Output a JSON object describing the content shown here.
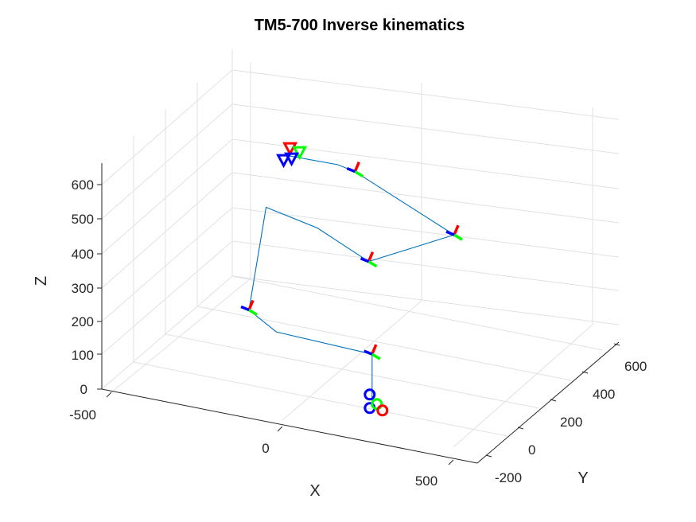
{
  "chart_data": {
    "type": "line3d",
    "title": "TM5-700 Inverse kinematics",
    "xlabel": "X",
    "ylabel": "Y",
    "zlabel": "Z",
    "x_ticks": [
      "-500",
      "0",
      "500"
    ],
    "y_ticks": [
      "-200",
      "0",
      "200",
      "400",
      "600"
    ],
    "z_ticks": [
      "0",
      "100",
      "200",
      "300",
      "400",
      "500",
      "600"
    ],
    "xlim": [
      -600,
      600
    ],
    "ylim": [
      -250,
      700
    ],
    "zlim": [
      0,
      700
    ],
    "grid": true,
    "link_color": "#0072bd",
    "frame_colors": {
      "x": "#ff0000",
      "y": "#00ff00",
      "z": "#0000ff"
    },
    "series": [
      {
        "points": [
          {
            "x": 80,
            "y": 0,
            "z": 0
          },
          {
            "x": 80,
            "y": 0,
            "z": 145
          },
          {
            "x": -60,
            "y": 0,
            "z": 150
          },
          {
            "x": -100,
            "y": 0,
            "z": 200
          },
          {
            "x": -75,
            "y": 0,
            "z": 530
          },
          {
            "x": 0,
            "y": 0,
            "z": 500
          },
          {
            "x": 75,
            "y": 0,
            "z": 430
          },
          {
            "x": 200,
            "y": 0,
            "z": 570
          },
          {
            "x": 55,
            "y": 0,
            "z": 700
          },
          {
            "x": 30,
            "y": 0,
            "z": 710
          },
          {
            "x": -40,
            "y": 0,
            "z": 705
          }
        ]
      }
    ]
  }
}
